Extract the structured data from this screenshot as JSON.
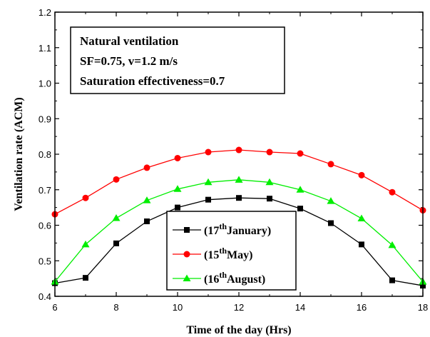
{
  "chart_data": {
    "type": "line",
    "title": "",
    "xlabel": "Time of the day (Hrs)",
    "ylabel": "Ventilation rate (ACM)",
    "xlim": [
      6,
      18
    ],
    "ylim": [
      0.4,
      1.2
    ],
    "xticks": [
      6,
      8,
      10,
      12,
      14,
      16,
      18
    ],
    "xtick_labels": [
      "6",
      "8",
      "10",
      "12",
      "14",
      "16",
      "18"
    ],
    "yticks": [
      0.4,
      0.5,
      0.6,
      0.7,
      0.8,
      0.9,
      1.0,
      1.1,
      1.2
    ],
    "ytick_labels": [
      "0.4",
      "0.5",
      "0.6",
      "0.7",
      "0.8",
      "0.9",
      "1.0",
      "1.1",
      "1.2"
    ],
    "grid": false,
    "annotation_lines": [
      "Natural ventilation",
      "SF=0.75, v=1.2 m/s",
      "Saturation effectiveness=0.7"
    ],
    "legend_position": "bottom-center",
    "x": [
      6,
      7,
      8,
      9,
      10,
      11,
      12,
      13,
      14,
      15,
      16,
      17,
      18
    ],
    "series": [
      {
        "name": "(17th January)",
        "legend_prefix": "(17",
        "legend_sup": "th",
        "legend_suffix": "January)",
        "color": "#000000",
        "marker": "square",
        "values": [
          0.437,
          0.452,
          0.549,
          0.611,
          0.65,
          0.672,
          0.677,
          0.675,
          0.647,
          0.606,
          0.546,
          0.445,
          0.43
        ]
      },
      {
        "name": "(15th May)",
        "legend_prefix": "(15",
        "legend_sup": "th",
        "legend_suffix": "May)",
        "color": "#ff0000",
        "marker": "circle",
        "values": [
          0.631,
          0.677,
          0.729,
          0.762,
          0.789,
          0.806,
          0.812,
          0.806,
          0.802,
          0.772,
          0.741,
          0.693,
          0.642
        ]
      },
      {
        "name": "(16th August)",
        "legend_prefix": "(16",
        "legend_sup": "th",
        "legend_suffix": "August)",
        "color": "#00ee00",
        "marker": "triangle",
        "values": [
          0.441,
          0.546,
          0.62,
          0.67,
          0.702,
          0.721,
          0.728,
          0.721,
          0.7,
          0.668,
          0.619,
          0.544,
          0.441
        ]
      }
    ]
  }
}
